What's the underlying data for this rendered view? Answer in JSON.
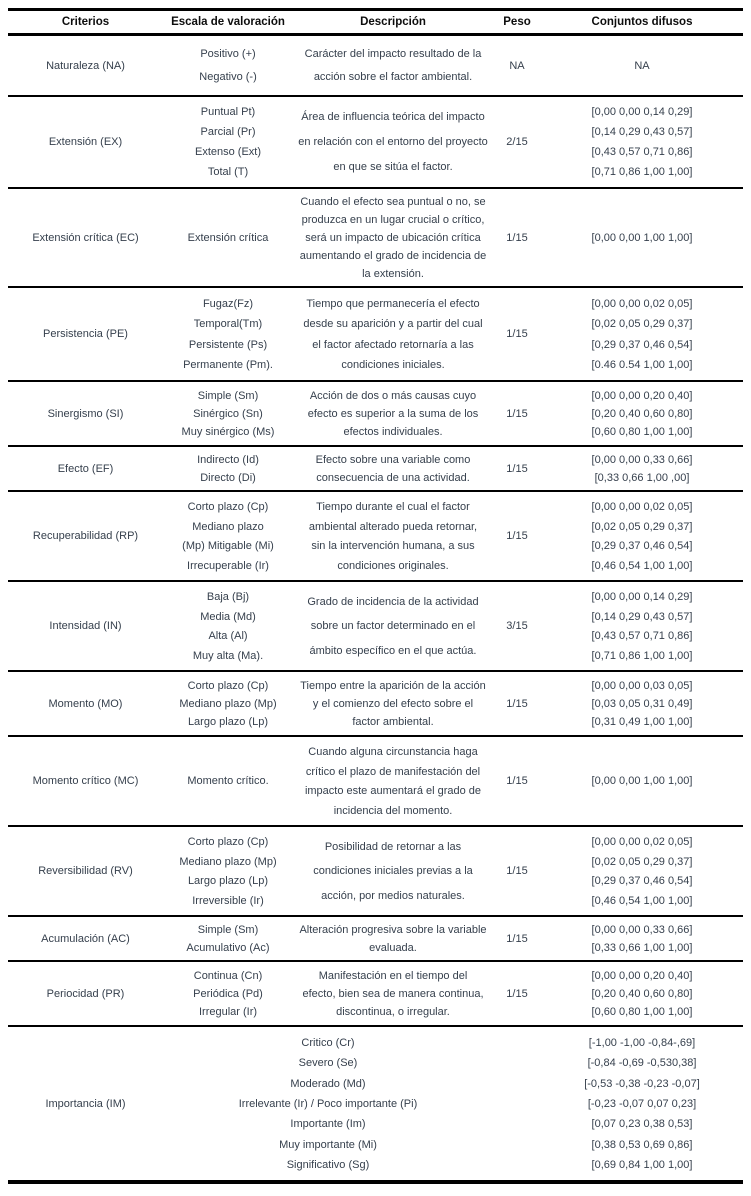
{
  "table": {
    "headers": [
      "Criterios",
      "Escala de valoración",
      "Descripción",
      "Peso",
      "Conjuntos difusos"
    ],
    "rows": [
      {
        "criterio": "Naturaleza (NA)",
        "escala": [
          "Positivo (+)",
          "Negativo (-)"
        ],
        "descripcion": [
          "Carácter del impacto resultado de la",
          "acción sobre el factor ambiental."
        ],
        "peso": "NA",
        "conjuntos": [
          "NA"
        ],
        "merged": false
      },
      {
        "criterio": "Extensión (EX)",
        "escala": [
          "Puntual Pt)",
          "Parcial (Pr)",
          "Extenso (Ext)",
          "Total (T)"
        ],
        "descripcion": [
          "Área de influencia teórica del impacto",
          "en relación con el entorno del proyecto",
          "en que se sitúa el factor."
        ],
        "peso": "2/15",
        "conjuntos": [
          "[0,00 0,00 0,14 0,29]",
          "[0,14 0,29 0,43 0,57]",
          "[0,43 0,57 0,71 0,86]",
          "[0,71 0,86 1,00 1,00]"
        ],
        "merged": false
      },
      {
        "criterio": "Extensión crítica (EC)",
        "escala": [
          "Extensión crítica"
        ],
        "descripcion": [
          "Cuando el efecto sea puntual o no, se",
          "produzca en un lugar crucial o crítico,",
          "será un impacto de ubicación crítica",
          "aumentando el grado de incidencia de",
          "la extensión."
        ],
        "peso": "1/15",
        "conjuntos": [
          "[0,00 0,00 1,00 1,00]"
        ],
        "merged": false
      },
      {
        "criterio": "Persistencia (PE)",
        "escala": [
          "Fugaz(Fz)",
          "Temporal(Tm)",
          "Persistente (Ps)",
          "Permanente (Pm)."
        ],
        "descripcion": [
          "Tiempo que permanecería el efecto",
          "desde su aparición y a partir del cual",
          "el factor afectado retornaría a las",
          "condiciones iniciales."
        ],
        "peso": "1/15",
        "conjuntos": [
          "[0,00 0,00 0,02 0,05]",
          "[0,02 0,05 0,29 0,37]",
          "[0,29 0,37 0,46 0,54]",
          "[0.46 0.54 1,00 1,00]"
        ],
        "merged": false
      },
      {
        "criterio": "Sinergismo (SI)",
        "escala": [
          "Simple (Sm)",
          "Sinérgico (Sn)",
          "Muy sinérgico (Ms)"
        ],
        "descripcion": [
          "Acción de dos o más causas cuyo",
          "efecto es superior a la suma de los",
          "efectos individuales."
        ],
        "peso": "1/15",
        "conjuntos": [
          "[0,00 0,00 0,20 0,40]",
          "[0,20 0,40 0,60 0,80]",
          "[0,60 0,80 1,00 1,00]"
        ],
        "merged": false
      },
      {
        "criterio": "Efecto (EF)",
        "escala": [
          "Indirecto (Id)",
          "Directo (Di)"
        ],
        "descripcion": [
          "Efecto sobre una variable como",
          "consecuencia de una actividad."
        ],
        "peso": "1/15",
        "conjuntos": [
          "[0,00 0,00 0,33 0,66]",
          "[0,33 0,66 1,00 ,00]"
        ],
        "merged": false
      },
      {
        "criterio": "Recuperabilidad (RP)",
        "escala": [
          "Corto plazo (Cp)",
          "Mediano plazo",
          "(Mp) Mitigable (Mi)",
          "Irrecuperable (Ir)"
        ],
        "descripcion": [
          "Tiempo durante el cual el factor",
          "ambiental alterado pueda retornar,",
          "sin la intervención humana, a sus",
          "condiciones originales."
        ],
        "peso": "1/15",
        "conjuntos": [
          "[0,00 0,00 0,02 0,05]",
          "[0,02 0,05 0,29 0,37]",
          "[0,29 0,37 0,46 0,54]",
          "[0,46 0,54 1,00 1,00]"
        ],
        "merged": false
      },
      {
        "criterio": "Intensidad (IN)",
        "escala": [
          "Baja (Bj)",
          "Media (Md)",
          "Alta (Al)",
          "Muy alta (Ma)."
        ],
        "descripcion": [
          "Grado de incidencia de la actividad",
          "sobre un factor determinado en el",
          "ámbito específico en el que actúa."
        ],
        "peso": "3/15",
        "conjuntos": [
          "[0,00 0,00 0,14 0,29]",
          "[0,14 0,29 0,43 0,57]",
          "[0,43 0,57 0,71 0,86]",
          "[0,71 0,86 1,00 1,00]"
        ],
        "merged": false
      },
      {
        "criterio": "Momento (MO)",
        "escala": [
          "Corto plazo (Cp)",
          "Mediano plazo (Mp)",
          "Largo plazo (Lp)"
        ],
        "descripcion": [
          "Tiempo entre la aparición de la acción",
          "y el comienzo del efecto sobre el",
          "factor ambiental."
        ],
        "peso": "1/15",
        "conjuntos": [
          "[0,00 0,00 0,03 0,05]",
          "[0,03 0,05 0,31 0,49]",
          "[0,31 0,49 1,00 1,00]"
        ],
        "merged": false
      },
      {
        "criterio": "Momento crítico (MC)",
        "escala": [
          "Momento crítico."
        ],
        "descripcion": [
          "Cuando alguna circunstancia haga",
          "crítico el plazo de manifestación del",
          "impacto este aumentará el grado de",
          "incidencia del momento."
        ],
        "peso": "1/15",
        "conjuntos": [
          "[0,00 0,00 1,00 1,00]"
        ],
        "merged": false
      },
      {
        "criterio": "Reversibilidad (RV)",
        "escala": [
          "Corto plazo (Cp)",
          "Mediano plazo (Mp)",
          "Largo plazo (Lp)",
          "Irreversible (Ir)"
        ],
        "descripcion": [
          "Posibilidad de retornar a las",
          "condiciones iniciales previas a la",
          "acción, por medios naturales."
        ],
        "peso": "1/15",
        "conjuntos": [
          "[0,00 0,00 0,02 0,05]",
          "[0,02 0,05 0,29 0,37]",
          "[0,29 0,37 0,46 0,54]",
          "[0,46 0,54 1,00 1,00]"
        ],
        "merged": false
      },
      {
        "criterio": "Acumulación (AC)",
        "escala": [
          "Simple (Sm)",
          "Acumulativo (Ac)"
        ],
        "descripcion": [
          "Alteración progresiva sobre la variable",
          "evaluada."
        ],
        "peso": "1/15",
        "conjuntos": [
          "[0,00 0,00 0,33 0,66]",
          "[0,33 0,66 1,00 1,00]"
        ],
        "merged": false
      },
      {
        "criterio": "Periocidad (PR)",
        "escala": [
          "Continua (Cn)",
          "Periódica (Pd)",
          "Irregular (Ir)"
        ],
        "descripcion": [
          "Manifestación en el tiempo del",
          "efecto, bien sea de manera continua,",
          "discontinua, o irregular."
        ],
        "peso": "1/15",
        "conjuntos": [
          "[0,00 0,00 0,20 0,40]",
          "[0,20 0,40 0,60 0,80]",
          "[0,60 0,80 1,00 1,00]"
        ],
        "merged": false
      },
      {
        "criterio": "Importancia (IM)",
        "escala": [
          "Critico (Cr)",
          "Severo (Se)",
          "Moderado (Md)",
          "Irrelevante (Ir) / Poco importante (Pi)",
          "Importante (Im)",
          "Muy importante (Mi)",
          "Significativo (Sg)"
        ],
        "descripcion": [],
        "peso": "",
        "conjuntos": [
          "[-1,00 -1,00 -0,84-,69]",
          "[-0,84 -0,69 -0,530,38]",
          "[-0,53 -0,38 -0,23 -0,07]",
          "[-0,23 -0,07 0,07 0,23]",
          "[0,07 0,23 0,38 0,53]",
          "[0,38 0,53 0,69 0,86]",
          "[0,69 0,84 1,00 1,00]"
        ],
        "merged": true
      }
    ]
  }
}
